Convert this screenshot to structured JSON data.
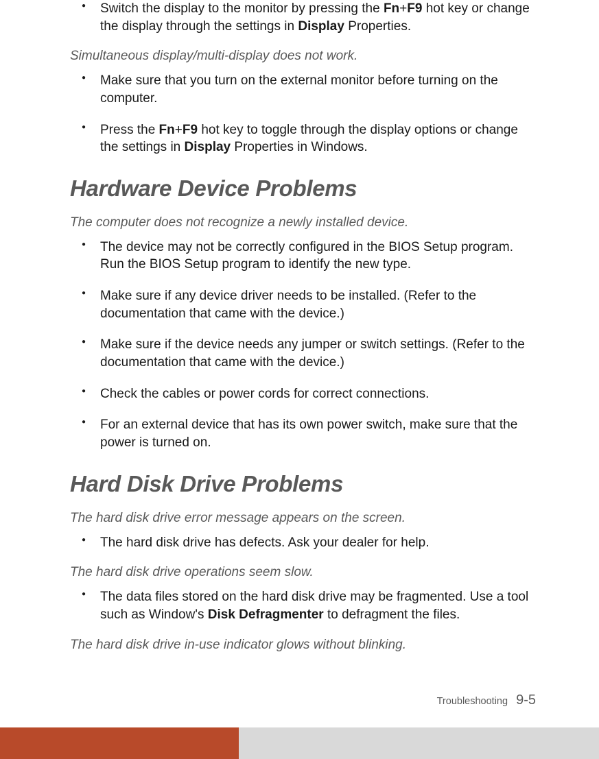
{
  "intro": {
    "items": [
      {
        "pre": "Switch the display to the monitor by pressing the ",
        "b1": "Fn",
        "mid1": "+",
        "b2": "F9",
        "mid2": " hot key or change the display through the settings in ",
        "b3": "Display",
        "post": " Properties."
      }
    ]
  },
  "issue1": {
    "heading": "Simultaneous display/multi-display does not work.",
    "items": [
      {
        "text": "Make sure that you turn on the external monitor before turning on the computer."
      },
      {
        "pre": "Press the ",
        "b1": "Fn",
        "mid1": "+",
        "b2": "F9",
        "mid2": " hot key to toggle through the display options or change the settings in ",
        "b3": "Display",
        "post": " Properties in Windows."
      }
    ]
  },
  "section1": {
    "heading": "Hardware Device Problems",
    "issue": "The computer does not recognize a newly installed device.",
    "items": [
      "The device may not be correctly configured in the BIOS Setup program. Run the BIOS Setup program to identify the new type.",
      "Make sure if any device driver needs to be installed. (Refer to the documentation that came with the device.)",
      "Make sure if the device needs any jumper or switch settings. (Refer to the documentation that came with the device.)",
      "Check the cables or power cords for correct connections.",
      "For an external device that has its own power switch, make sure that the power is turned on."
    ]
  },
  "section2": {
    "heading": "Hard Disk Drive Problems",
    "issueA": "The hard disk drive error message appears on the screen.",
    "itemsA": [
      "The hard disk drive has defects. Ask your dealer for help."
    ],
    "issueB": "The hard disk drive operations seem slow.",
    "itemsB": [
      {
        "pre": "The data files stored on the hard disk drive may be fragmented. Use a tool such as Window's ",
        "b1": "Disk Defragmenter",
        "post": " to defragment the files."
      }
    ],
    "issueC": "The hard disk drive in-use indicator glows without blinking."
  },
  "footer": {
    "section": "Troubleshooting",
    "page": "9-5"
  }
}
